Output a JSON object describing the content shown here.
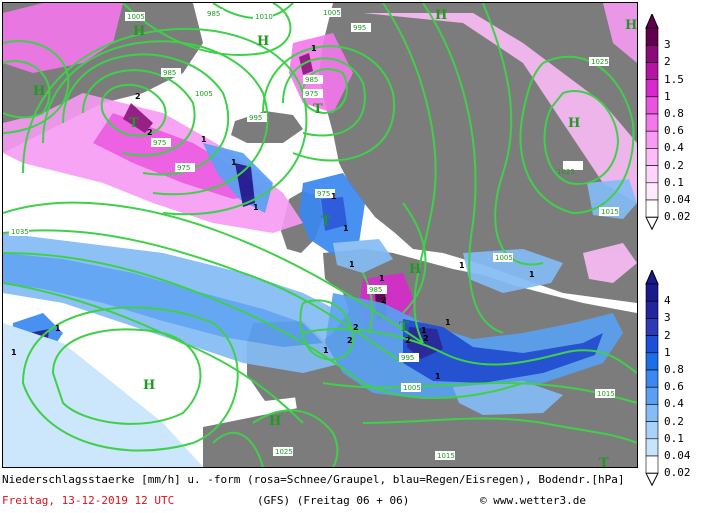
{
  "caption": {
    "line1": "Niederschlagsstaerke [mm/h] u. -form (rosa=Schnee/Graupel, blau=Regen/Eisregen), Bodendr.[hPa]",
    "date": "Freitag, 13-12-2019  12 UTC",
    "model": "(GFS)  (Freitag 06 + 06)",
    "copyright": "© www.wetter3.de"
  },
  "legend_snow": {
    "labels": [
      "3",
      "2",
      "1.5",
      "1",
      "0.8",
      "0.6",
      "0.4",
      "0.2",
      "0.1",
      "0.04",
      "0.02"
    ],
    "colors": [
      "#62004f",
      "#8a0a78",
      "#b414a4",
      "#d829cc",
      "#ea52e0",
      "#f477ec",
      "#f89bf3",
      "#fbbcf7",
      "#fdd5fb",
      "#fee9fd",
      "#ffffff"
    ]
  },
  "legend_rain": {
    "labels": [
      "4",
      "3",
      "2",
      "1",
      "0.8",
      "0.6",
      "0.4",
      "0.2",
      "0.1",
      "0.04",
      "0.02"
    ],
    "colors": [
      "#1a1a8c",
      "#24249e",
      "#2e3ab4",
      "#1d4fd8",
      "#1c6ee8",
      "#3a88f0",
      "#5aa0f2",
      "#84bcf6",
      "#a8d2f8",
      "#c8e4fb",
      "#ffffff"
    ]
  },
  "map": {
    "colors": {
      "sea": "#ffffff",
      "land": "#7a7a7a",
      "isobar": "#3fd04a",
      "label": "#1f9a1f"
    },
    "high_label": "H",
    "low_label": "T",
    "isobar_values": [
      "1005",
      "1010",
      "985",
      "995",
      "1005",
      "1005",
      "985",
      "975",
      "975",
      "995",
      "985",
      "975",
      "1035",
      "1025",
      "1025",
      "1015",
      "1015",
      "1015",
      "1005",
      "1005",
      "995",
      "1025",
      "985",
      "975",
      "1005",
      "1005",
      "1015",
      "1025",
      "1025",
      "1015",
      "995",
      "985"
    ],
    "precip_values": [
      "1",
      "2",
      "1",
      "2",
      "1",
      "1",
      "1",
      "2",
      "1",
      "1",
      "2",
      "1",
      "2",
      "1",
      "1",
      "2",
      "2",
      "1",
      "1",
      "1",
      "1",
      "1",
      "1"
    ]
  }
}
